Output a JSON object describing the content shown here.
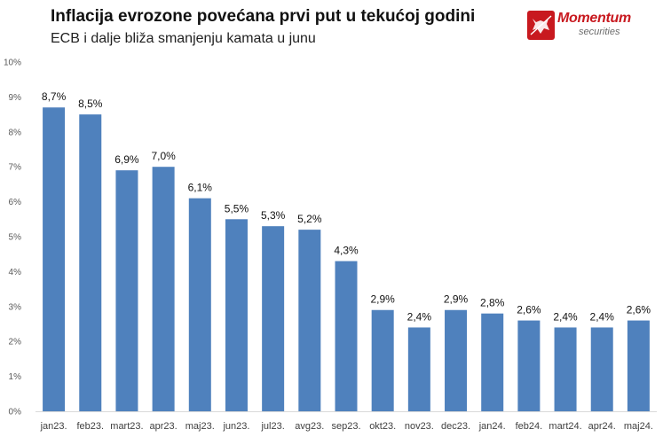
{
  "header": {
    "title": "Inflacija evrozone povećana prvi put u tekućoj godini",
    "subtitle": "ECB i dalje bliža smanjenju kamata u junu"
  },
  "logo": {
    "name": "Momentum",
    "sub": "securities",
    "color": "#c8191f"
  },
  "chart_data": {
    "type": "bar",
    "title": "Inflacija evrozone povećana prvi put u tekućoj godini",
    "subtitle": "ECB i dalje bliža smanjenju kamata u junu",
    "xlabel": "",
    "ylabel": "",
    "ylim": [
      0,
      10
    ],
    "grid": false,
    "bar_color": "#4f81bd",
    "y_ticks": [
      "0%",
      "1%",
      "2%",
      "3%",
      "4%",
      "5%",
      "6%",
      "7%",
      "8%",
      "9%",
      "10%"
    ],
    "categories": [
      "jan23.",
      "feb23.",
      "mart23.",
      "apr23.",
      "maj23.",
      "jun23.",
      "jul23.",
      "avg23.",
      "sep23.",
      "okt23.",
      "nov23.",
      "dec23.",
      "jan24.",
      "feb24.",
      "mart24.",
      "apr24.",
      "maj24."
    ],
    "values": [
      8.7,
      8.5,
      6.9,
      7.0,
      6.1,
      5.5,
      5.3,
      5.2,
      4.3,
      2.9,
      2.4,
      2.9,
      2.8,
      2.6,
      2.4,
      2.4,
      2.6
    ],
    "data_labels": [
      "8,7%",
      "8,5%",
      "6,9%",
      "7,0%",
      "6,1%",
      "5,5%",
      "5,3%",
      "5,2%",
      "4,3%",
      "2,9%",
      "2,4%",
      "2,9%",
      "2,8%",
      "2,6%",
      "2,4%",
      "2,4%",
      "2,6%"
    ]
  }
}
